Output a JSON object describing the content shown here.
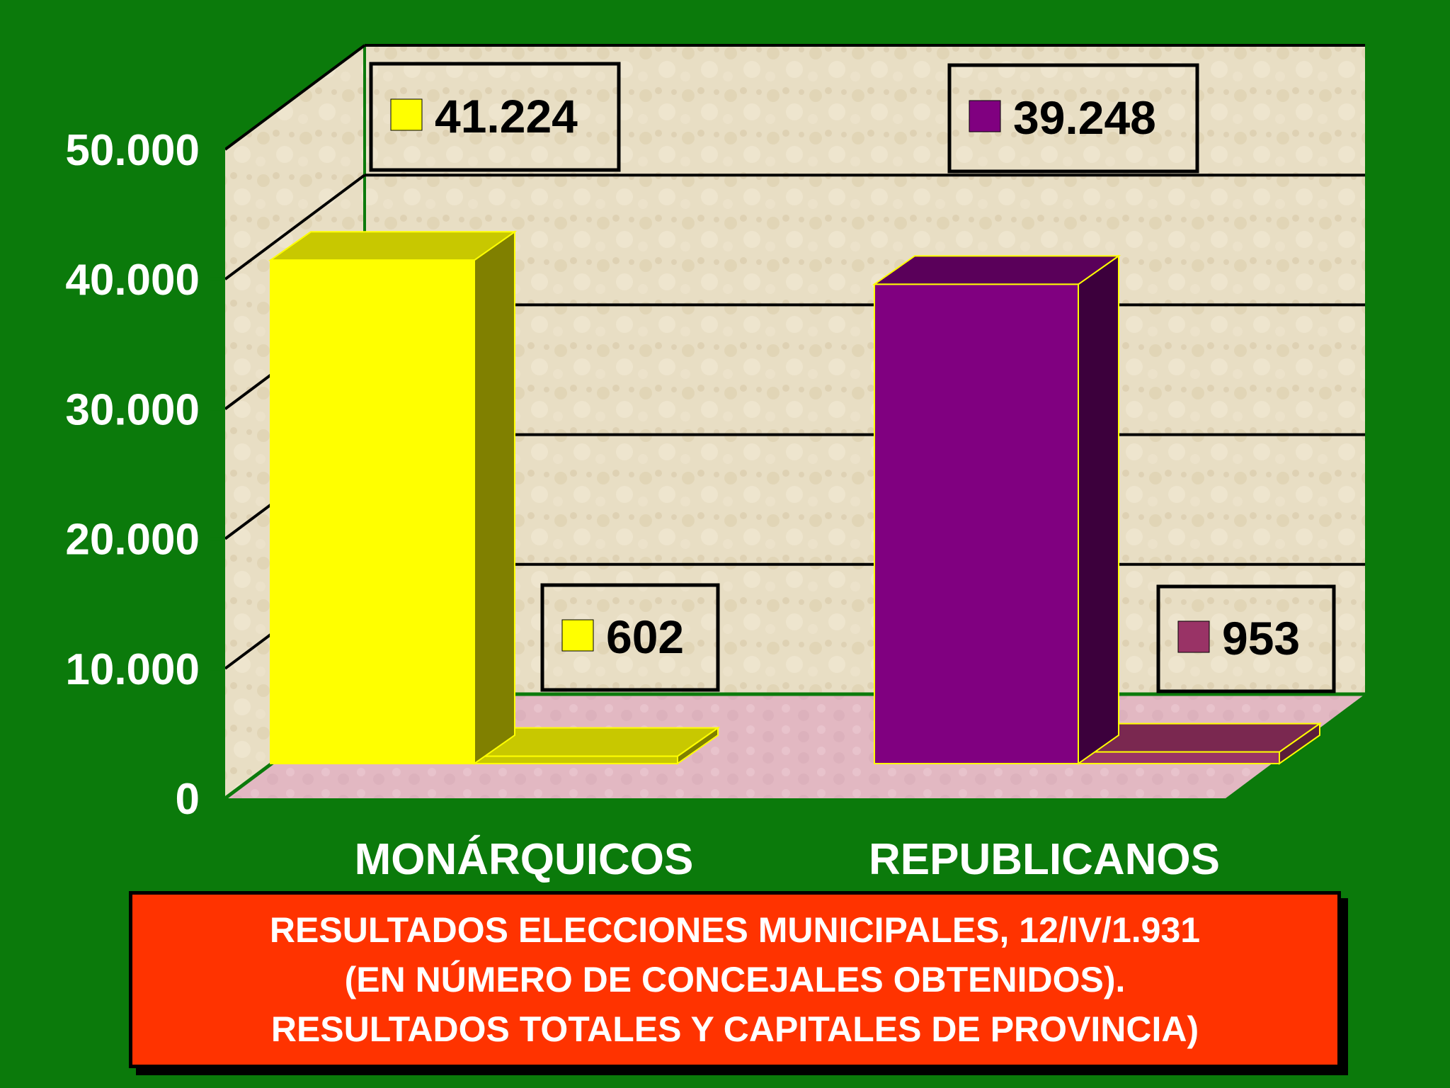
{
  "chart_data": {
    "type": "bar",
    "categories": [
      "MONÁRQUICOS",
      "REPUBLICANOS"
    ],
    "series": [
      {
        "values": [
          41224,
          39248
        ]
      },
      {
        "values": [
          602,
          953
        ]
      }
    ],
    "data_labels": [
      {
        "category": 0,
        "series": 0,
        "text": "41.224",
        "color": "#ffff00"
      },
      {
        "category": 0,
        "series": 1,
        "text": "602",
        "color": "#ffff00"
      },
      {
        "category": 1,
        "series": 0,
        "text": "39.248",
        "color": "#800080"
      },
      {
        "category": 1,
        "series": 1,
        "text": "953",
        "color": "#993366"
      }
    ],
    "ylim": [
      0,
      50000
    ],
    "yticks": [
      0,
      10000,
      20000,
      30000,
      40000,
      50000
    ],
    "ytick_labels": [
      "0",
      "10.000",
      "20.000",
      "30.000",
      "40.000",
      "50.000"
    ],
    "grid": true,
    "colors": {
      "background": "#0b7a0b",
      "monarquicos_front": "#ffff00",
      "monarquicos_side": "#808000",
      "monarquicos_top": "#c8c800",
      "republicanos_front": "#800080",
      "republicanos_side": "#3c003c",
      "republicanos_top": "#5a005a",
      "small_republicanos": "#993366",
      "wall": "#e6dcc0",
      "floor": "#e0b4c0",
      "caption_box": "#ff3300"
    }
  },
  "caption": {
    "line1": "RESULTADOS ELECCIONES MUNICIPALES, 12/IV/1.931",
    "line2": "(EN NÚMERO DE CONCEJALES OBTENIDOS).",
    "line3": "RESULTADOS TOTALES Y CAPITALES DE PROVINCIA)"
  }
}
